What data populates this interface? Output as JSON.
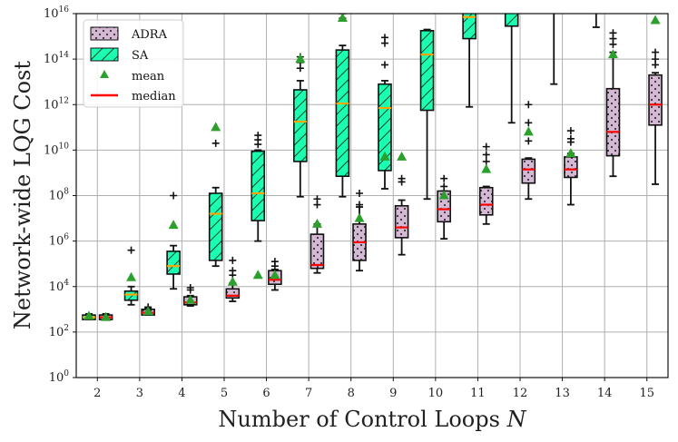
{
  "chart_data": {
    "type": "box",
    "title": "",
    "xlabel": "Number of Control Loops",
    "xlabel_symbol": "N",
    "ylabel": "Network-wide LQG Cost",
    "y_scale": "log",
    "ylim_exponents": [
      0,
      16
    ],
    "y_tick_exponents": [
      0,
      2,
      4,
      6,
      8,
      10,
      12,
      14,
      16
    ],
    "y_tick_base": "10",
    "x": [
      2,
      3,
      4,
      5,
      6,
      7,
      8,
      9,
      10,
      11,
      12,
      13,
      14,
      15
    ],
    "x_tick_labels": [
      "2",
      "3",
      "4",
      "5",
      "6",
      "7",
      "8",
      "9",
      "10",
      "11",
      "12",
      "13",
      "14",
      "15"
    ],
    "grid": true,
    "legend_position": "top-left",
    "legend": [
      {
        "key": "adra",
        "label": "ADRA"
      },
      {
        "key": "sa",
        "label": "SA"
      },
      {
        "key": "mean",
        "label": "mean"
      },
      {
        "key": "median",
        "label": "median"
      }
    ],
    "colors": {
      "adra_fill": "#d4b8d4",
      "sa_fill": "#1affb0",
      "mean_marker": "#2ca02c",
      "median_line": "#ff0000",
      "sa_median_line": "#ffa500",
      "grid": "#b0b0b0"
    },
    "series": [
      {
        "name": "SA",
        "key": "sa",
        "boxes_log10": [
          {
            "x": 2,
            "wlo": 2.55,
            "q1": 2.55,
            "med": 2.65,
            "q3": 2.75,
            "whi": 2.8,
            "mean": 2.7,
            "fliers": []
          },
          {
            "x": 3,
            "wlo": 3.2,
            "q1": 3.4,
            "med": 3.65,
            "q3": 3.8,
            "whi": 4.0,
            "mean": 4.4,
            "fliers": [
              5.6
            ]
          },
          {
            "x": 4,
            "wlo": 3.9,
            "q1": 4.55,
            "med": 4.9,
            "q3": 5.55,
            "whi": 5.8,
            "mean": 6.7,
            "fliers": [
              8.0
            ]
          },
          {
            "x": 5,
            "wlo": 4.9,
            "q1": 5.15,
            "med": 7.2,
            "q3": 8.1,
            "whi": 8.35,
            "mean": 11.0,
            "fliers": [
              10.3
            ]
          },
          {
            "x": 6,
            "wlo": 6.0,
            "q1": 6.9,
            "med": 8.1,
            "q3": 9.95,
            "whi": 10.0,
            "mean": 4.5,
            "fliers": [
              10.25,
              10.45,
              10.65
            ]
          },
          {
            "x": 7,
            "wlo": 7.95,
            "q1": 9.5,
            "med": 11.25,
            "q3": 12.65,
            "whi": 13.05,
            "mean": 14.0,
            "fliers": [
              13.6,
              13.85,
              14.1
            ]
          },
          {
            "x": 8,
            "wlo": 7.95,
            "q1": 8.85,
            "med": 12.05,
            "q3": 14.4,
            "whi": 14.6,
            "mean": 15.8,
            "fliers": [
              15.8,
              16.0
            ]
          },
          {
            "x": 9,
            "wlo": 8.3,
            "q1": 9.1,
            "med": 11.85,
            "q3": 12.9,
            "whi": 13.05,
            "mean": 9.7,
            "fliers": [
              13.75,
              14.7,
              14.95
            ]
          },
          {
            "x": 10,
            "wlo": 7.85,
            "q1": 11.75,
            "med": 14.2,
            "q3": 15.25,
            "whi": 15.3,
            "mean": 18.0,
            "fliers": []
          },
          {
            "x": 11,
            "wlo": 11.9,
            "q1": 14.9,
            "med": 15.85,
            "q3": 17.0,
            "whi": 18.0,
            "mean": 18.0,
            "fliers": []
          },
          {
            "x": 12,
            "wlo": 11.2,
            "q1": 15.45,
            "med": 17.0,
            "q3": 18.0,
            "whi": 18.0,
            "mean": 18.0,
            "fliers": []
          },
          {
            "x": 13,
            "wlo": 12.9,
            "q1": 18.0,
            "med": 18.0,
            "q3": 18.0,
            "whi": 18.0,
            "mean": 18.0,
            "fliers": []
          },
          {
            "x": 14,
            "wlo": 15.4,
            "q1": 18.0,
            "med": 18.0,
            "q3": 18.0,
            "whi": 18.0,
            "mean": 18.0,
            "fliers": []
          }
        ]
      },
      {
        "name": "ADRA",
        "key": "adra",
        "boxes_log10": [
          {
            "x": 2,
            "wlo": 2.55,
            "q1": 2.55,
            "med": 2.65,
            "q3": 2.75,
            "whi": 2.8,
            "mean": 2.65,
            "fliers": []
          },
          {
            "x": 3,
            "wlo": 2.75,
            "q1": 2.75,
            "med": 2.85,
            "q3": 3.0,
            "whi": 3.05,
            "mean": 2.9,
            "fliers": [
              3.1
            ]
          },
          {
            "x": 4,
            "wlo": 3.15,
            "q1": 3.2,
            "med": 3.3,
            "q3": 3.55,
            "whi": 3.6,
            "mean": 3.4,
            "fliers": [
              3.85,
              3.95
            ]
          },
          {
            "x": 5,
            "wlo": 3.35,
            "q1": 3.5,
            "med": 3.6,
            "q3": 3.9,
            "whi": 4.15,
            "mean": 4.2,
            "fliers": [
              4.5,
              4.7,
              5.15
            ]
          },
          {
            "x": 6,
            "wlo": 3.85,
            "q1": 4.1,
            "med": 4.3,
            "q3": 4.7,
            "whi": 4.75,
            "mean": 4.5,
            "fliers": [
              4.9,
              5.1
            ]
          },
          {
            "x": 7,
            "wlo": 4.6,
            "q1": 4.8,
            "med": 4.95,
            "q3": 6.3,
            "whi": 6.75,
            "mean": 6.75,
            "fliers": [
              7.6,
              7.85
            ]
          },
          {
            "x": 8,
            "wlo": 4.7,
            "q1": 5.15,
            "med": 5.95,
            "q3": 6.75,
            "whi": 7.5,
            "mean": 7.0,
            "fliers": [
              7.6,
              8.1
            ]
          },
          {
            "x": 9,
            "wlo": 5.4,
            "q1": 6.15,
            "med": 6.6,
            "q3": 7.55,
            "whi": 7.8,
            "mean": 9.7,
            "fliers": [
              8.6,
              8.75
            ]
          },
          {
            "x": 10,
            "wlo": 6.1,
            "q1": 6.85,
            "med": 7.4,
            "q3": 8.2,
            "whi": 8.2,
            "mean": 8.0,
            "fliers": [
              8.4,
              8.75
            ]
          },
          {
            "x": 11,
            "wlo": 6.75,
            "q1": 7.15,
            "med": 7.6,
            "q3": 8.35,
            "whi": 8.4,
            "mean": 9.15,
            "fliers": [
              9.5,
              9.8,
              10.15
            ]
          },
          {
            "x": 12,
            "wlo": 7.85,
            "q1": 8.55,
            "med": 9.15,
            "q3": 9.6,
            "whi": 9.65,
            "mean": 10.8,
            "fliers": [
              10.4,
              11.2,
              12.0
            ]
          },
          {
            "x": 13,
            "wlo": 7.6,
            "q1": 8.8,
            "med": 9.15,
            "q3": 9.7,
            "whi": 9.85,
            "mean": 9.85,
            "fliers": [
              10.35,
              10.5,
              10.85
            ]
          },
          {
            "x": 14,
            "wlo": 8.85,
            "q1": 9.75,
            "med": 10.8,
            "q3": 12.7,
            "whi": 14.3,
            "mean": 14.2,
            "fliers": [
              14.65,
              14.9,
              15.15
            ]
          },
          {
            "x": 15,
            "wlo": 8.5,
            "q1": 11.1,
            "med": 12.0,
            "q3": 13.3,
            "whi": 13.4,
            "mean": 15.7,
            "fliers": [
              13.75,
              14.0,
              14.3
            ]
          }
        ]
      }
    ]
  }
}
